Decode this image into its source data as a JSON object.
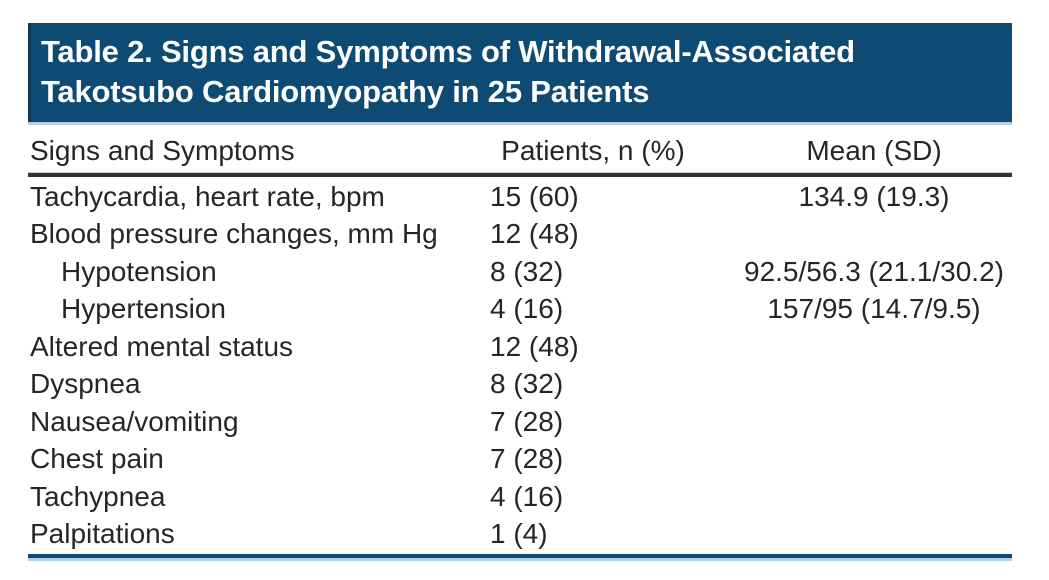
{
  "title": {
    "line1": "Table 2. Signs and Symptoms of Withdrawal-Associated",
    "line2": "Takotsubo Cardiomyopathy in 25 Patients"
  },
  "columns": [
    "Signs and Symptoms",
    "Patients, n (%)",
    "Mean (SD)"
  ],
  "rows": [
    {
      "label": "Tachycardia, heart rate, bpm",
      "patients": "15 (60)",
      "mean": "134.9 (19.3)",
      "indent": false
    },
    {
      "label": "Blood pressure changes, mm Hg",
      "patients": "12 (48)",
      "mean": "",
      "indent": false
    },
    {
      "label": "Hypotension",
      "patients": "8 (32)",
      "mean": "92.5/56.3 (21.1/30.2)",
      "indent": true
    },
    {
      "label": "Hypertension",
      "patients": "4 (16)",
      "mean": "157/95 (14.7/9.5)",
      "indent": true
    },
    {
      "label": "Altered mental status",
      "patients": "12 (48)",
      "mean": "",
      "indent": false
    },
    {
      "label": "Dyspnea",
      "patients": "8 (32)",
      "mean": "",
      "indent": false
    },
    {
      "label": "Nausea/vomiting",
      "patients": "7 (28)",
      "mean": "",
      "indent": false
    },
    {
      "label": "Chest pain",
      "patients": "7 (28)",
      "mean": "",
      "indent": false
    },
    {
      "label": "Tachypnea",
      "patients": "4 (16)",
      "mean": "",
      "indent": false
    },
    {
      "label": "Palpitations",
      "patients": "1 (4)",
      "mean": "",
      "indent": false
    }
  ],
  "colors": {
    "band_blue": "#0e4b74",
    "light_blue": "#b8cee1",
    "header_rule": "#333333",
    "body_text": "#262626",
    "title_text": "#ffffff"
  }
}
